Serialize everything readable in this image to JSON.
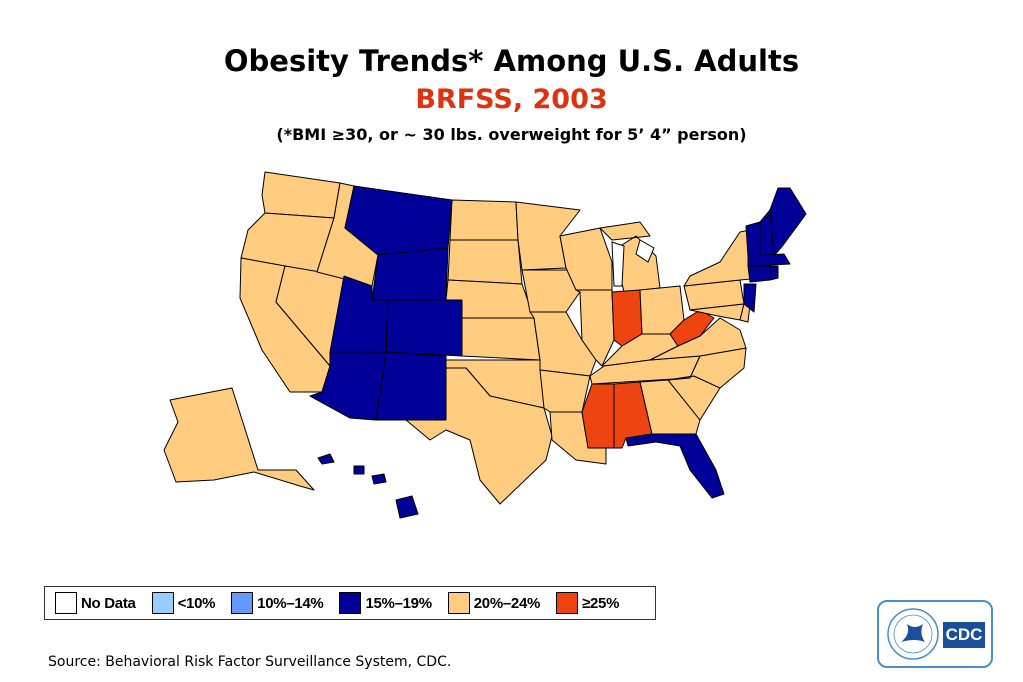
{
  "header": {
    "title": "Obesity Trends* Among U.S. Adults",
    "subtitle": "BRFSS, 2003",
    "note": "(*BMI ≥30, or ~ 30 lbs. overweight for 5’ 4” person)"
  },
  "colors": {
    "no_data": "#ffffff",
    "lt10": "#99ccff",
    "r10_14": "#6699ff",
    "r15_19": "#000099",
    "r20_24": "#ffcc80",
    "ge25": "#ee4411",
    "subtitle": "#dd3311",
    "border": "#000000"
  },
  "legend": {
    "items": [
      {
        "label": "No Data",
        "color": "#ffffff"
      },
      {
        "label": "<10%",
        "color": "#99ccff"
      },
      {
        "label": "10%–14%",
        "color": "#6699ff"
      },
      {
        "label": "15%–19%",
        "color": "#000099"
      },
      {
        "label": "20%–24%",
        "color": "#ffcc80"
      },
      {
        "label": "≥25%",
        "color": "#ee4411"
      }
    ]
  },
  "map_data": {
    "year": "2003",
    "states_by_category": {
      "15%–19%": [
        "Montana",
        "Wyoming",
        "Colorado",
        "Utah",
        "Arizona",
        "New Mexico",
        "Florida",
        "Hawaii",
        "Maine",
        "Vermont",
        "New Hampshire",
        "Massachusetts",
        "Connecticut",
        "Rhode Island",
        "New Jersey"
      ],
      "20%–24%": [
        "Washington",
        "Oregon",
        "California",
        "Nevada",
        "Idaho",
        "Alaska",
        "North Dakota",
        "South Dakota",
        "Nebraska",
        "Kansas",
        "Oklahoma",
        "Texas",
        "Minnesota",
        "Iowa",
        "Missouri",
        "Arkansas",
        "Louisiana",
        "Wisconsin",
        "Illinois",
        "Michigan",
        "Ohio",
        "Kentucky",
        "Tennessee",
        "Georgia",
        "South Carolina",
        "North Carolina",
        "Virginia",
        "Pennsylvania",
        "New York",
        "Maryland",
        "Delaware"
      ],
      "≥25%": [
        "Indiana",
        "West Virginia",
        "Mississippi",
        "Alabama"
      ]
    }
  },
  "footer": {
    "source": "Source: Behavioral Risk Factor Surveillance System, CDC."
  },
  "logo": {
    "text": "CDC"
  }
}
